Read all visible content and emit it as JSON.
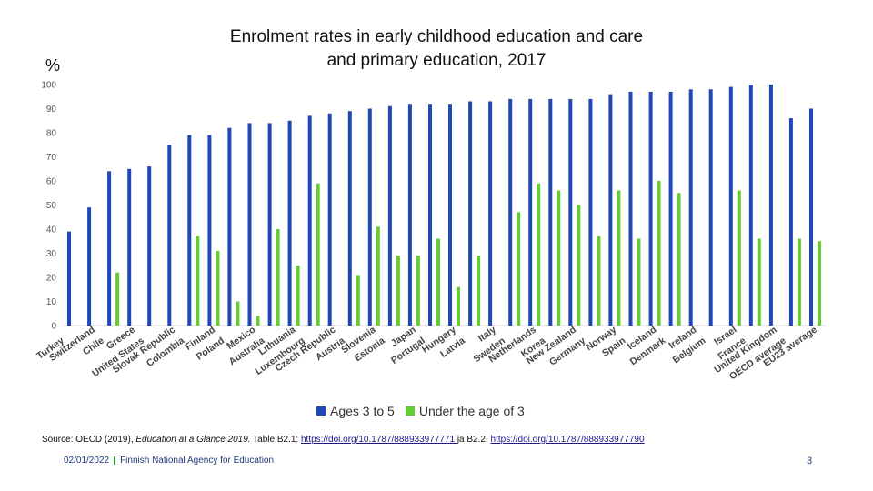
{
  "chart_data": {
    "type": "bar",
    "title": "Enrolment rates in early childhood education and care and primary education, 2017",
    "ylabel": "%",
    "xlabel": "",
    "ylim": [
      0,
      100
    ],
    "yticks": [
      0,
      10,
      20,
      30,
      40,
      50,
      60,
      70,
      80,
      90,
      100
    ],
    "grid": false,
    "legend_position": "bottom",
    "categories": [
      "Turkey",
      "Switzerland",
      "Chile",
      "Greece",
      "United States",
      "Slovak Republic",
      "Colombia",
      "Finland",
      "Poland",
      "Mexico",
      "Australia",
      "Lithuania",
      "Luxembourg",
      "Czech Republic",
      "Austria",
      "Slovenia",
      "Estonia",
      "Japan",
      "Portugal",
      "Hungary",
      "Latvia",
      "Italy",
      "Sweden",
      "Netherlands",
      "Korea",
      "New Zealand",
      "Germany",
      "Norway",
      "Spain",
      "Iceland",
      "Denmark",
      "Ireland",
      "Belgium",
      "Israel",
      "France",
      "United Kingdom",
      "OECD average",
      "EU23 average"
    ],
    "series": [
      {
        "name": "Ages 3 to 5",
        "color": "#1f47b5",
        "values": [
          39,
          49,
          64,
          65,
          66,
          75,
          79,
          79,
          82,
          84,
          84,
          85,
          87,
          88,
          89,
          90,
          91,
          92,
          92,
          92,
          93,
          93,
          94,
          94,
          94,
          94,
          94,
          96,
          97,
          97,
          97,
          98,
          98,
          99,
          100,
          100,
          86,
          90
        ]
      },
      {
        "name": "Under the age of 3",
        "color": "#66cc33",
        "values": [
          null,
          null,
          22,
          null,
          null,
          null,
          37,
          31,
          10,
          4,
          40,
          25,
          59,
          null,
          21,
          41,
          29,
          29,
          36,
          16,
          29,
          null,
          47,
          59,
          56,
          50,
          37,
          56,
          36,
          60,
          55,
          null,
          null,
          56,
          36,
          null,
          36,
          35
        ]
      }
    ]
  },
  "legend": {
    "series1": "Ages 3 to 5",
    "series2": "Under the age of 3"
  },
  "unit_label": "%",
  "title_line1": "Enrolment rates in early childhood education and care",
  "title_line2": "and primary education, 2017",
  "source": {
    "prefix": "Source: OECD (2019), ",
    "italic": "Education at a Glance 2019.",
    "middle": " Table B2.1: ",
    "link1": "https://doi.org/10.1787/888933977771 ",
    "between": " ja B2.2: ",
    "link2": "https://doi.org/10.1787/888933977790"
  },
  "footer": {
    "date": "02/01/2022",
    "org": "Finnish National Agency for Education",
    "page": "3"
  },
  "colors": {
    "blue": "#1f47b5",
    "green": "#66cc33",
    "axis": "#d9d9d9"
  }
}
